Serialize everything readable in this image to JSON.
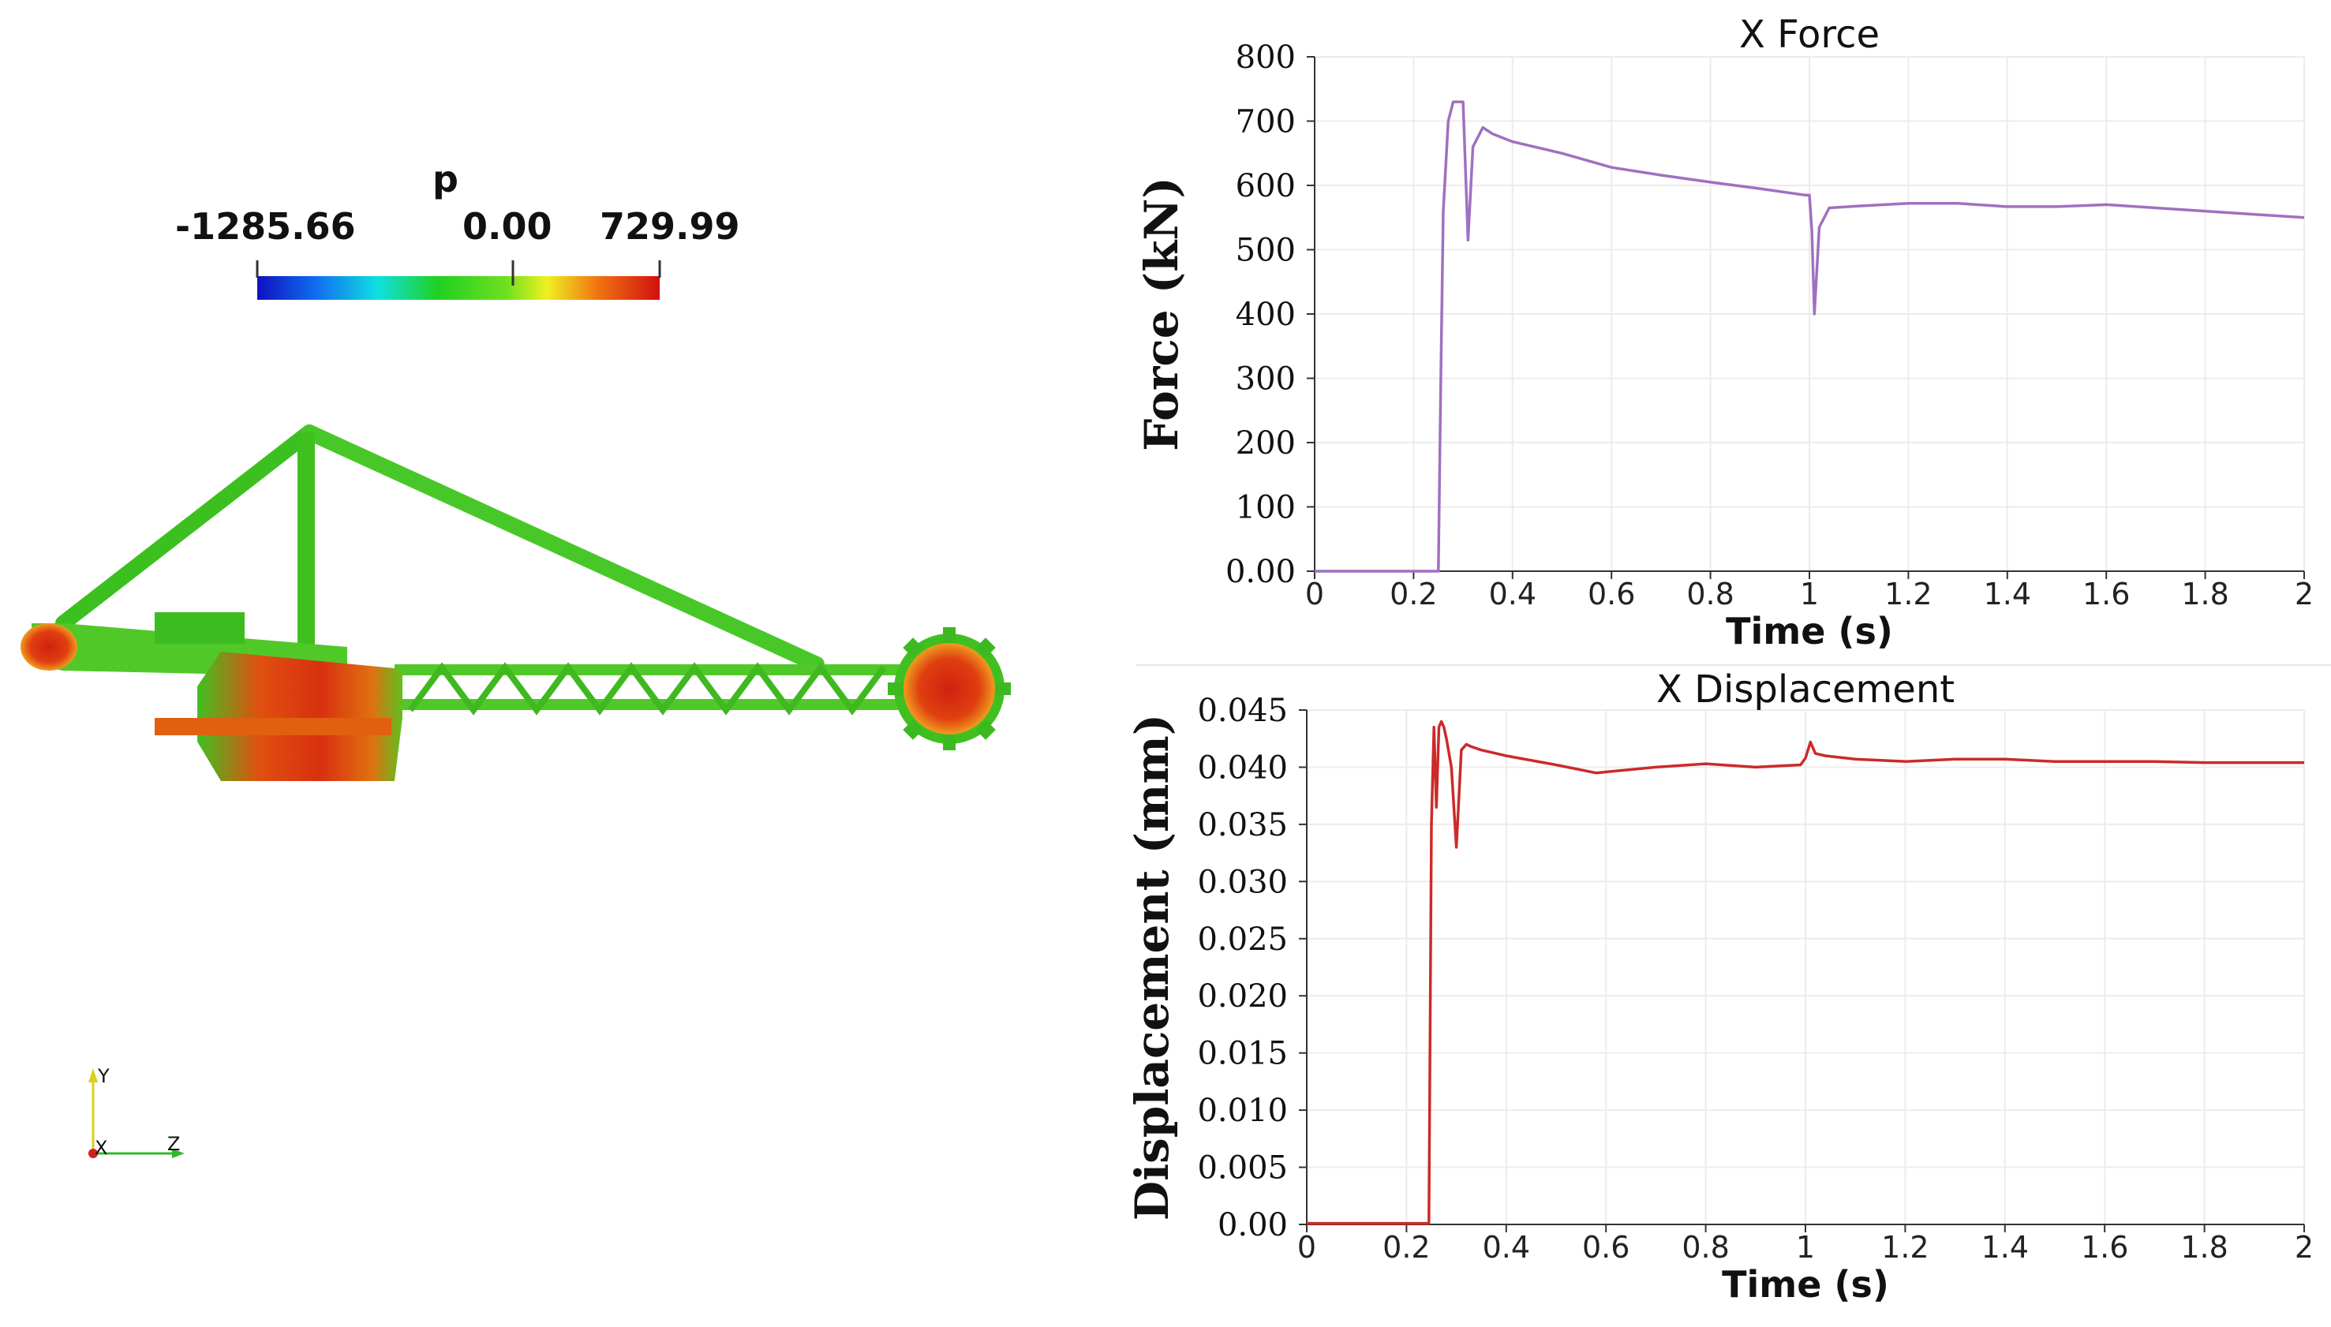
{
  "colorbar": {
    "variable": "p",
    "min_label": "-1285.66",
    "mid_label": "0.00",
    "max_label": "729.99",
    "min": -1285.66,
    "max": 729.99
  },
  "axes_triad": {
    "y": "Y",
    "x": "X",
    "z": "Z"
  },
  "chart_data": [
    {
      "type": "line",
      "title": "X Force",
      "xlabel": "Time (s)",
      "ylabel": "Force (kN)",
      "xlim": [
        0,
        2
      ],
      "ylim": [
        0,
        800
      ],
      "x_ticks": [
        "0",
        "0.2",
        "0.4",
        "0.6",
        "0.8",
        "1",
        "1.2",
        "1.4",
        "1.6",
        "1.8",
        "2"
      ],
      "x_tick_values": [
        0,
        0.2,
        0.4,
        0.6,
        0.8,
        1,
        1.2,
        1.4,
        1.6,
        1.8,
        2
      ],
      "y_ticks": [
        "0.00",
        "100",
        "200",
        "300",
        "400",
        "500",
        "600",
        "700",
        "800"
      ],
      "y_tick_values": [
        0,
        100,
        200,
        300,
        400,
        500,
        600,
        700,
        800
      ],
      "grid": true,
      "color": "#a070c0",
      "series": [
        {
          "name": "X Force",
          "x": [
            0,
            0.24,
            0.25,
            0.255,
            0.26,
            0.27,
            0.28,
            0.29,
            0.3,
            0.31,
            0.32,
            0.34,
            0.36,
            0.4,
            0.5,
            0.6,
            0.7,
            0.8,
            0.9,
            0.99,
            1.0,
            1.005,
            1.01,
            1.02,
            1.04,
            1.1,
            1.2,
            1.3,
            1.4,
            1.5,
            1.6,
            1.7,
            1.8,
            1.9,
            2.0
          ],
          "y": [
            0,
            0,
            0,
            300,
            560,
            700,
            730,
            730,
            730,
            515,
            660,
            690,
            680,
            668,
            650,
            628,
            616,
            605,
            595,
            585,
            585,
            530,
            400,
            535,
            565,
            568,
            572,
            572,
            567,
            567,
            570,
            565,
            560,
            555,
            550
          ]
        }
      ]
    },
    {
      "type": "line",
      "title": "X Displacement",
      "xlabel": "Time (s)",
      "ylabel": "Displacement (mm)",
      "xlim": [
        0,
        2
      ],
      "ylim": [
        0,
        0.045
      ],
      "x_ticks": [
        "0",
        "0.2",
        "0.4",
        "0.6",
        "0.8",
        "1",
        "1.2",
        "1.4",
        "1.6",
        "1.8",
        "2"
      ],
      "x_tick_values": [
        0,
        0.2,
        0.4,
        0.6,
        0.8,
        1,
        1.2,
        1.4,
        1.6,
        1.8,
        2
      ],
      "y_ticks": [
        "0.00",
        "0.005",
        "0.010",
        "0.015",
        "0.020",
        "0.025",
        "0.030",
        "0.035",
        "0.040",
        "0.045"
      ],
      "y_tick_values": [
        0,
        0.005,
        0.01,
        0.015,
        0.02,
        0.025,
        0.03,
        0.035,
        0.04,
        0.045
      ],
      "grid": true,
      "color": "#cc2a2a",
      "series": [
        {
          "name": "X Displacement",
          "x": [
            0,
            0.245,
            0.25,
            0.255,
            0.26,
            0.265,
            0.27,
            0.275,
            0.28,
            0.29,
            0.3,
            0.31,
            0.32,
            0.33,
            0.35,
            0.4,
            0.5,
            0.58,
            0.7,
            0.8,
            0.9,
            0.99,
            1.0,
            1.01,
            1.02,
            1.04,
            1.1,
            1.2,
            1.3,
            1.4,
            1.5,
            1.6,
            1.7,
            1.8,
            1.9,
            2.0
          ],
          "y": [
            0.0001,
            0.0001,
            0.035,
            0.0435,
            0.0365,
            0.0435,
            0.044,
            0.0435,
            0.0425,
            0.04,
            0.033,
            0.0415,
            0.042,
            0.0418,
            0.0415,
            0.041,
            0.0402,
            0.0395,
            0.04,
            0.0403,
            0.04,
            0.0402,
            0.0408,
            0.0422,
            0.0412,
            0.041,
            0.0407,
            0.0405,
            0.0407,
            0.0407,
            0.0405,
            0.0405,
            0.0405,
            0.0404,
            0.0404,
            0.0404
          ]
        }
      ]
    }
  ]
}
